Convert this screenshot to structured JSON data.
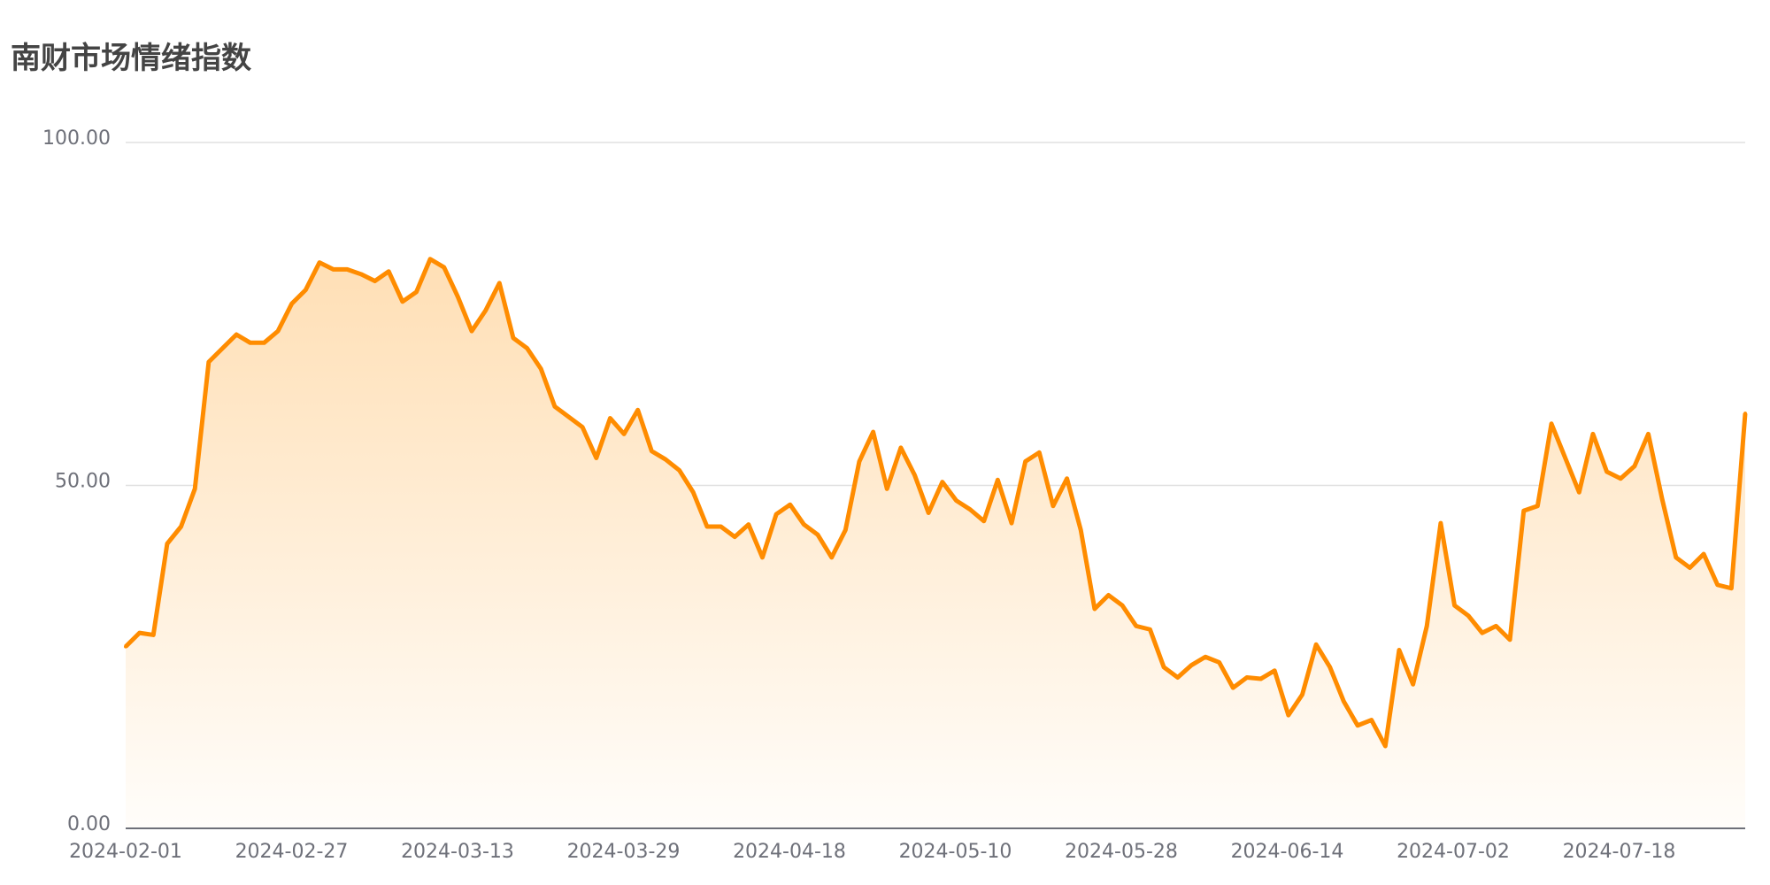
{
  "chart_data": {
    "type": "area",
    "title": "南财市场情绪指数",
    "xlabel": "",
    "ylabel": "",
    "ylim": [
      0,
      100
    ],
    "y_ticks": [
      "0.00",
      "50.00",
      "100.00"
    ],
    "x_tick_labels": [
      "2024-02-01",
      "2024-02-27",
      "2024-03-13",
      "2024-03-29",
      "2024-04-18",
      "2024-05-10",
      "2024-05-28",
      "2024-06-14",
      "2024-07-02",
      "2024-07-18"
    ],
    "grid": true,
    "legend": "none",
    "colors": {
      "line": "#ff8c00",
      "area_top": "#ffdfb5",
      "area_bottom": "#fffdfa",
      "grid": "#e0e0e0",
      "axis": "#6e7079"
    },
    "series": [
      {
        "values": [
          26.5,
          28.5,
          28.2,
          41.5,
          44.0,
          49.5,
          68.0,
          70.0,
          72.0,
          70.8,
          70.8,
          72.5,
          76.5,
          78.5,
          82.5,
          81.5,
          81.5,
          80.8,
          79.8,
          81.2,
          76.8,
          78.2,
          83.0,
          81.8,
          77.5,
          72.5,
          75.5,
          79.5,
          71.5,
          70.0,
          67.0,
          61.5,
          60.0,
          58.5,
          54.0,
          59.8,
          57.5,
          61.0,
          55.0,
          53.8,
          52.2,
          49.0,
          44.0,
          44.0,
          42.5,
          44.3,
          39.5,
          45.8,
          47.2,
          44.3,
          42.8,
          39.5,
          43.5,
          53.5,
          57.8,
          49.5,
          55.5,
          51.5,
          46.0,
          50.5,
          47.8,
          46.5,
          44.8,
          50.8,
          44.5,
          53.5,
          54.8,
          47.0,
          51.0,
          43.5,
          32.0,
          34.0,
          32.5,
          29.5,
          29.0,
          23.5,
          22.0,
          23.8,
          25.0,
          24.2,
          20.5,
          22.0,
          21.8,
          23.0,
          16.5,
          19.5,
          26.8,
          23.5,
          18.5,
          15.0,
          15.8,
          12.0,
          26.0,
          21.0,
          29.5,
          44.5,
          32.5,
          31.0,
          28.5,
          29.5,
          27.5,
          46.3,
          47.0,
          59.0,
          54.0,
          49.0,
          57.5,
          52.0,
          51.0,
          52.8,
          57.5,
          48.0,
          39.5,
          38.0,
          40.0,
          35.5,
          35.0,
          60.5
        ]
      }
    ]
  }
}
